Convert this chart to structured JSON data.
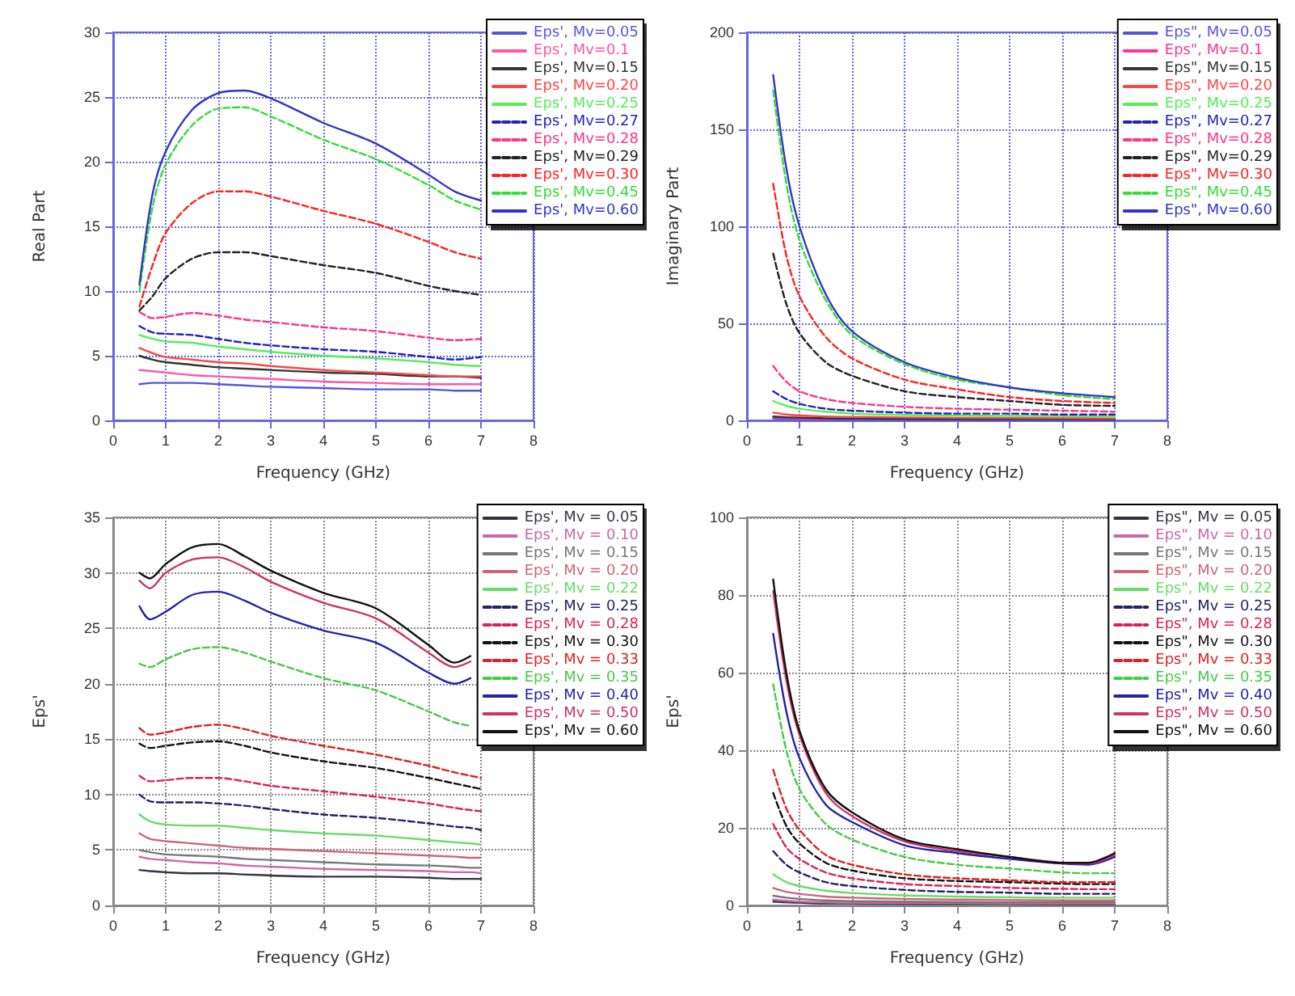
{
  "chart_data": [
    {
      "type": "line",
      "ylabel": "Real Part",
      "xlabel": "Frequency (GHz)",
      "xlim": [
        0,
        8
      ],
      "xticks": [
        0,
        1,
        2,
        3,
        4,
        5,
        6,
        7,
        8
      ],
      "ylim": [
        0,
        30
      ],
      "yticks": [
        0,
        5,
        10,
        15,
        20,
        25,
        30
      ],
      "grid": true,
      "legend": "top right",
      "marker": "none",
      "x": [
        0.5,
        0.75,
        1,
        1.5,
        2,
        2.5,
        3,
        4,
        5,
        6,
        6.5,
        7
      ],
      "series": [
        {
          "name": "Eps', Mv=0.05",
          "color": "#5555dd",
          "values": [
            2.8,
            2.9,
            2.9,
            2.9,
            2.8,
            2.7,
            2.6,
            2.5,
            2.4,
            2.4,
            2.3,
            2.3
          ]
        },
        {
          "name": "Eps', Mv=0.1",
          "color": "#ff55aa",
          "values": [
            3.9,
            3.8,
            3.7,
            3.5,
            3.4,
            3.3,
            3.2,
            3.0,
            2.9,
            2.8,
            2.8,
            2.8
          ]
        },
        {
          "name": "Eps', Mv=0.15",
          "color": "#333333",
          "values": [
            5.0,
            4.7,
            4.5,
            4.3,
            4.1,
            4.0,
            3.9,
            3.7,
            3.6,
            3.4,
            3.4,
            3.3
          ]
        },
        {
          "name": "Eps', Mv=0.20",
          "color": "#ff4444",
          "values": [
            5.6,
            5.2,
            4.9,
            4.7,
            4.5,
            4.4,
            4.2,
            3.9,
            3.7,
            3.5,
            3.4,
            3.4
          ]
        },
        {
          "name": "Eps', Mv=0.25",
          "color": "#55ee55",
          "values": [
            6.6,
            6.3,
            6.1,
            6.0,
            5.7,
            5.5,
            5.3,
            5.0,
            4.8,
            4.5,
            4.3,
            4.2
          ]
        },
        {
          "name": "Eps', Mv=0.27",
          "color": "#2222bb",
          "line_style": "dashed",
          "values": [
            7.3,
            6.8,
            6.7,
            6.6,
            6.3,
            6.0,
            5.8,
            5.5,
            5.3,
            4.9,
            4.7,
            4.9
          ]
        },
        {
          "name": "Eps', Mv=0.28",
          "color": "#ff3388",
          "line_style": "dashed",
          "values": [
            8.4,
            7.9,
            8.0,
            8.3,
            8.1,
            7.8,
            7.6,
            7.2,
            6.9,
            6.4,
            6.2,
            6.3
          ]
        },
        {
          "name": "Eps', Mv=0.29",
          "color": "#222222",
          "line_style": "dashed",
          "values": [
            8.5,
            9.6,
            11.0,
            12.5,
            13.0,
            13.0,
            12.7,
            12.0,
            11.4,
            10.4,
            10.0,
            9.7
          ]
        },
        {
          "name": "Eps', Mv=0.30",
          "color": "#ff2222",
          "line_style": "dashed",
          "values": [
            8.8,
            12.0,
            14.5,
            16.8,
            17.7,
            17.7,
            17.3,
            16.2,
            15.2,
            13.8,
            13.0,
            12.5
          ]
        },
        {
          "name": "Eps', Mv=0.45",
          "color": "#33dd33",
          "line_style": "dashed",
          "values": [
            10.0,
            16.5,
            19.8,
            22.8,
            24.1,
            24.2,
            23.5,
            21.7,
            20.2,
            18.2,
            17.0,
            16.3
          ]
        },
        {
          "name": "Eps', Mv=0.60",
          "color": "#3333cc",
          "values": [
            10.5,
            17.5,
            20.8,
            24.0,
            25.3,
            25.5,
            24.9,
            23.0,
            21.4,
            19.0,
            17.7,
            17.0
          ]
        }
      ]
    },
    {
      "type": "line",
      "ylabel": "Imaginary Part",
      "xlabel": "Frequency (GHz)",
      "xlim": [
        0,
        8
      ],
      "xticks": [
        0,
        1,
        2,
        3,
        4,
        5,
        6,
        7,
        8
      ],
      "ylim": [
        0,
        200
      ],
      "yticks": [
        0,
        50,
        100,
        150,
        200
      ],
      "grid": true,
      "legend": "top right",
      "marker": "none",
      "x": [
        0.5,
        0.75,
        1,
        1.5,
        2,
        3,
        4,
        5,
        6,
        7
      ],
      "series": [
        {
          "name": "Eps\", Mv=0.05",
          "color": "#5555dd",
          "values": [
            1,
            0.8,
            0.7,
            0.5,
            0.4,
            0.3,
            0.3,
            0.3,
            0.2,
            0.2
          ]
        },
        {
          "name": "Eps\", Mv=0.1",
          "color": "#ff3399",
          "values": [
            1.5,
            1.2,
            1,
            0.8,
            null,
            null,
            null,
            null,
            null,
            null
          ]
        },
        {
          "name": "Eps\", Mv=0.15",
          "color": "#333333",
          "values": [
            2,
            1.6,
            1.4,
            1.1,
            1,
            0.8,
            0.7,
            0.6,
            0.6,
            0.5
          ]
        },
        {
          "name": "Eps\", Mv=0.20",
          "color": "#ff4444",
          "values": [
            4,
            3,
            2.5,
            2,
            1.8,
            1.5,
            1.3,
            1.2,
            1.1,
            1
          ]
        },
        {
          "name": "Eps\", Mv=0.25",
          "color": "#55ee55",
          "values": [
            10,
            7.5,
            6,
            4.5,
            3.5,
            2.8,
            2.5,
            2.3,
            2.2,
            2
          ]
        },
        {
          "name": "Eps\", Mv=0.27",
          "color": "#2222bb",
          "line_style": "dashed",
          "values": [
            15,
            11,
            8.5,
            6,
            5,
            4,
            3.5,
            3.5,
            3,
            3
          ]
        },
        {
          "name": "Eps\", Mv=0.28",
          "color": "#ff3388",
          "line_style": "dashed",
          "values": [
            28,
            20,
            15,
            11,
            9,
            7,
            6,
            5.5,
            5,
            4.5
          ]
        },
        {
          "name": "Eps\", Mv=0.29",
          "color": "#222222",
          "line_style": "dashed",
          "values": [
            86,
            60,
            45,
            30,
            23,
            15,
            12,
            10,
            8,
            7.5
          ]
        },
        {
          "name": "Eps\", Mv=0.30",
          "color": "#ff2222",
          "line_style": "dashed",
          "values": [
            122,
            85,
            64,
            43,
            32,
            21,
            16,
            12,
            10,
            9
          ]
        },
        {
          "name": "Eps\", Mv=0.45",
          "color": "#33dd33",
          "line_style": "dashed",
          "values": [
            170,
            122,
            93,
            62,
            44,
            29,
            21,
            17,
            13,
            11
          ]
        },
        {
          "name": "Eps\", Mv=0.60",
          "color": "#3333cc",
          "values": [
            178,
            130,
            100,
            65,
            46,
            30,
            22,
            17,
            14,
            12
          ]
        }
      ]
    },
    {
      "type": "line",
      "ylabel": "Eps'",
      "xlabel": "Frequency (GHz)",
      "xlim": [
        0,
        8
      ],
      "xticks": [
        0,
        1,
        2,
        3,
        4,
        5,
        6,
        7,
        8
      ],
      "ylim": [
        0,
        35
      ],
      "yticks": [
        0,
        5,
        10,
        15,
        20,
        25,
        30,
        35
      ],
      "grid": true,
      "legend": "top right",
      "marker": "none",
      "x": [
        0.5,
        0.7,
        1,
        1.5,
        2,
        2.5,
        3,
        4,
        5,
        6,
        6.5,
        6.8,
        7
      ],
      "series": [
        {
          "name": "Eps', Mv = 0.05",
          "color": "#333344",
          "values": [
            3.2,
            3.1,
            3.0,
            2.9,
            2.9,
            2.8,
            2.7,
            2.6,
            2.6,
            2.5,
            2.4,
            2.4,
            2.4
          ]
        },
        {
          "name": "Eps', Mv = 0.10",
          "color": "#cc66aa",
          "values": [
            4.4,
            4.2,
            4.1,
            3.9,
            3.8,
            3.6,
            3.5,
            3.3,
            3.2,
            3.1,
            3.0,
            3.0,
            2.9
          ]
        },
        {
          "name": "Eps', Mv = 0.15",
          "color": "#777777",
          "values": [
            5.0,
            4.8,
            4.6,
            4.5,
            4.4,
            4.2,
            4.1,
            3.9,
            3.7,
            3.6,
            3.5,
            3.4,
            3.4
          ]
        },
        {
          "name": "Eps', Mv = 0.20",
          "color": "#cc6677",
          "values": [
            6.5,
            6.0,
            5.8,
            5.6,
            5.4,
            5.2,
            5.1,
            4.9,
            4.7,
            4.5,
            4.4,
            4.3,
            4.3
          ]
        },
        {
          "name": "Eps', Mv = 0.22",
          "color": "#66dd66",
          "values": [
            8.2,
            7.6,
            7.3,
            7.2,
            7.2,
            7.0,
            6.8,
            6.5,
            6.3,
            5.9,
            5.7,
            5.6,
            5.5
          ]
        },
        {
          "name": "Eps', Mv = 0.25",
          "color": "#222266",
          "line_style": "dashed",
          "values": [
            10,
            9.4,
            9.3,
            9.3,
            9.2,
            9.0,
            8.7,
            8.2,
            7.9,
            7.4,
            7.1,
            7.0,
            6.8
          ]
        },
        {
          "name": "Eps', Mv = 0.28",
          "color": "#dd2255",
          "line_style": "dashed",
          "values": [
            11.7,
            11.2,
            11.3,
            11.5,
            11.5,
            11.2,
            10.8,
            10.3,
            9.8,
            9.2,
            8.8,
            8.6,
            8.5
          ]
        },
        {
          "name": "Eps', Mv = 0.30",
          "color": "#111111",
          "line_style": "dashed",
          "values": [
            14.6,
            14.2,
            14.4,
            14.7,
            14.8,
            14.4,
            13.8,
            13.0,
            12.4,
            11.5,
            11.0,
            10.7,
            10.5
          ]
        },
        {
          "name": "Eps', Mv = 0.33",
          "color": "#dd2222",
          "line_style": "dashed",
          "values": [
            16,
            15.4,
            15.6,
            16.1,
            16.3,
            15.9,
            15.3,
            14.4,
            13.6,
            12.6,
            12,
            11.7,
            11.5
          ]
        },
        {
          "name": "Eps', Mv = 0.35",
          "color": "#44cc44",
          "line_style": "dashed",
          "values": [
            21.8,
            21.5,
            22.2,
            23.1,
            23.3,
            22.8,
            22,
            20.5,
            19.4,
            17.5,
            16.5,
            16.2,
            null
          ]
        },
        {
          "name": "Eps', Mv = 0.40",
          "color": "#2222aa",
          "values": [
            27,
            25.8,
            26.5,
            28,
            28.3,
            27.5,
            26.4,
            24.8,
            23.7,
            21,
            20,
            20.5,
            null
          ]
        },
        {
          "name": "Eps', Mv = 0.50",
          "color": "#cc3366",
          "values": [
            29.3,
            28.6,
            30,
            31.2,
            31.4,
            30.5,
            29.2,
            27.3,
            25.9,
            22.8,
            21.5,
            22.0,
            null
          ]
        },
        {
          "name": "Eps', Mv = 0.60",
          "color": "#111111",
          "values": [
            30,
            29.5,
            30.8,
            32.3,
            32.6,
            31.5,
            30.2,
            28.2,
            26.8,
            23.5,
            21.9,
            22.5,
            null
          ]
        }
      ]
    },
    {
      "type": "line",
      "ylabel": "Eps'",
      "xlabel": "Frequency (GHz)",
      "xlim": [
        0,
        8
      ],
      "xticks": [
        0,
        1,
        2,
        3,
        4,
        5,
        6,
        7,
        8
      ],
      "ylim": [
        0,
        100
      ],
      "yticks": [
        0,
        20,
        40,
        60,
        80,
        100
      ],
      "grid": true,
      "legend": "top right",
      "marker": "none",
      "x": [
        0.5,
        0.75,
        1,
        1.5,
        2,
        3,
        4,
        5,
        6,
        6.5,
        7
      ],
      "series": [
        {
          "name": "Eps\", Mv = 0.05",
          "color": "#333344",
          "values": [
            1,
            0.8,
            0.7,
            0.5,
            0.5,
            0.4,
            0.4,
            0.4,
            0.3,
            0.3,
            0.3
          ]
        },
        {
          "name": "Eps\", Mv = 0.10",
          "color": "#cc66aa",
          "values": [
            1.5,
            1.2,
            1,
            0.8,
            0.7,
            0.6,
            0.6,
            0.5,
            0.5,
            0.5,
            0.5
          ]
        },
        {
          "name": "Eps\", Mv = 0.15",
          "color": "#777777",
          "values": [
            2.5,
            2,
            1.7,
            1.3,
            1.1,
            1,
            0.9,
            0.8,
            0.8,
            0.8,
            0.8
          ]
        },
        {
          "name": "Eps\", Mv = 0.20",
          "color": "#cc6677",
          "values": [
            4.5,
            3.5,
            3,
            2.3,
            2,
            1.7,
            1.5,
            1.4,
            1.3,
            1.3,
            1.3
          ]
        },
        {
          "name": "Eps\", Mv = 0.22",
          "color": "#66dd66",
          "values": [
            8,
            6,
            5,
            3.8,
            3.2,
            2.6,
            2.3,
            2.1,
            2,
            2,
            2
          ]
        },
        {
          "name": "Eps\", Mv = 0.25",
          "color": "#222266",
          "line_style": "dashed",
          "values": [
            14,
            10.5,
            8.5,
            6,
            5,
            4,
            3.5,
            3.3,
            3,
            3,
            3
          ]
        },
        {
          "name": "Eps\", Mv = 0.28",
          "color": "#dd2255",
          "line_style": "dashed",
          "values": [
            21,
            15,
            12,
            8.5,
            7,
            5.5,
            5,
            4.5,
            4.3,
            4.2,
            4.2
          ]
        },
        {
          "name": "Eps\", Mv = 0.30",
          "color": "#111111",
          "line_style": "dashed",
          "values": [
            29,
            20.5,
            16,
            11,
            9,
            7,
            6.3,
            6,
            5.6,
            5.5,
            5.5
          ]
        },
        {
          "name": "Eps\", Mv = 0.33",
          "color": "#dd2222",
          "line_style": "dashed",
          "values": [
            35,
            25,
            19.5,
            13,
            10.5,
            8,
            7,
            6.5,
            6,
            6,
            6
          ]
        },
        {
          "name": "Eps\", Mv = 0.35",
          "color": "#44cc44",
          "line_style": "dashed",
          "values": [
            57,
            40,
            30,
            21,
            17,
            12.5,
            10.5,
            9.5,
            8.5,
            8.3,
            8.3
          ]
        },
        {
          "name": "Eps\", Mv = 0.40",
          "color": "#2222aa",
          "values": [
            70,
            50,
            38,
            26,
            21.5,
            15.5,
            13.5,
            12,
            10.8,
            10.5,
            12.5
          ]
        },
        {
          "name": "Eps\", Mv = 0.50",
          "color": "#cc3366",
          "values": [
            81,
            58,
            44,
            29,
            23,
            16.5,
            14,
            12.5,
            11,
            10.8,
            13
          ]
        },
        {
          "name": "Eps\", Mv = 0.60",
          "color": "#111111",
          "values": [
            84,
            60,
            45,
            30,
            24,
            17,
            14.5,
            12.5,
            11,
            11,
            13.5
          ]
        }
      ]
    }
  ]
}
